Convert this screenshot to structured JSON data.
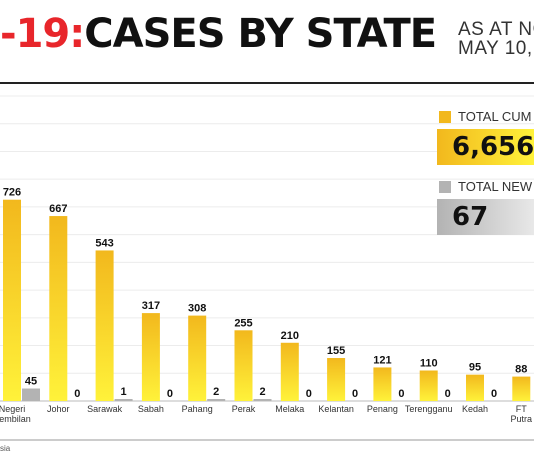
{
  "header": {
    "title_red": "-19:",
    "title_black": "CASES BY STATE",
    "subtitle_line1": "AS AT NO",
    "subtitle_line2": "MAY 10,"
  },
  "summary": {
    "total_cumulative": {
      "label": "TOTAL CUM",
      "value": "6,656"
    },
    "total_new": {
      "label": "TOTAL NEW",
      "value": "67"
    }
  },
  "source_text": "sia",
  "colors": {
    "red": "#e8262b",
    "cumulative_top": "#f2b81d",
    "cumulative_bottom": "#fff23a",
    "new_cases": "#b3b3b3"
  },
  "chart_data": {
    "type": "bar",
    "categories": [
      "Negeri Sembilan",
      "Johor",
      "Sarawak",
      "Sabah",
      "Pahang",
      "Perak",
      "Melaka",
      "Kelantan",
      "Penang",
      "Terengganu",
      "Kedah",
      "FT Putra"
    ],
    "series": [
      {
        "values": [
          726,
          667,
          543,
          317,
          308,
          255,
          210,
          155,
          121,
          110,
          95,
          88
        ]
      },
      {
        "values": [
          45,
          0,
          1,
          0,
          2,
          2,
          0,
          0,
          0,
          0,
          0,
          null
        ]
      }
    ],
    "ylim": [
      0,
      1100
    ],
    "grid": true
  }
}
